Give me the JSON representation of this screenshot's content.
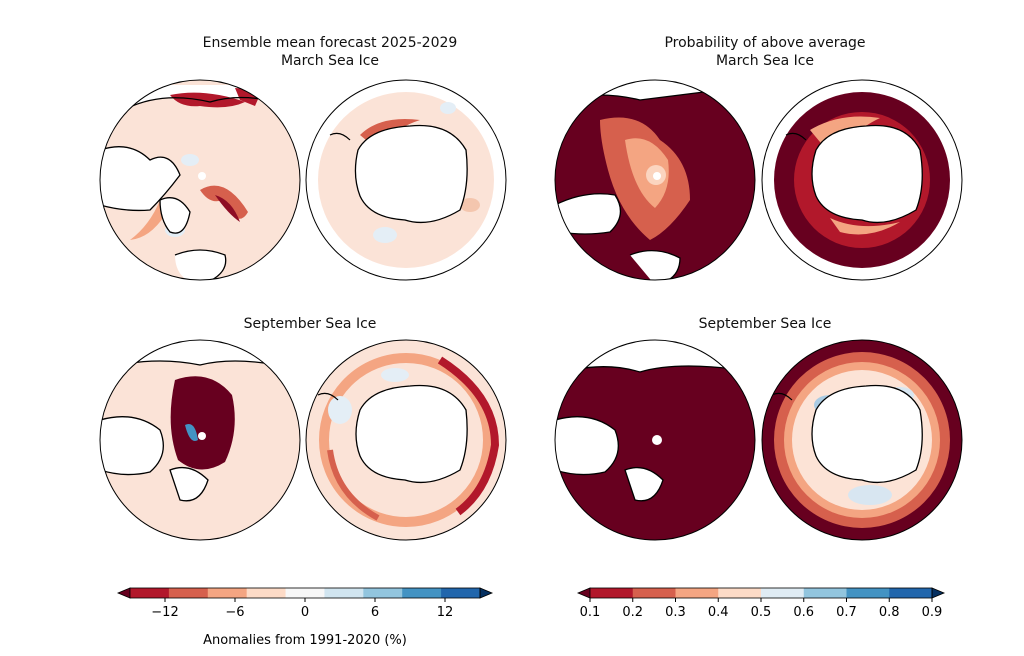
{
  "chart_data": [
    {
      "type": "heatmap",
      "title": "Ensemble mean forecast 2025-2029",
      "subtitle": "March Sea Ice",
      "panels": [
        "Arctic",
        "Antarctic"
      ]
    },
    {
      "type": "heatmap",
      "title": "Probability of above average",
      "subtitle": "March Sea Ice",
      "panels": [
        "Arctic",
        "Antarctic"
      ]
    },
    {
      "type": "heatmap",
      "title": "September Sea Ice",
      "panels": [
        "Arctic",
        "Antarctic"
      ]
    },
    {
      "type": "heatmap",
      "title": "September Sea Ice",
      "panels": [
        "Arctic",
        "Antarctic"
      ]
    }
  ],
  "colorbars": {
    "anomaly": {
      "label": "Anomalies from 1991-2020 (%)",
      "ticks": [
        "−12",
        "−6",
        "0",
        "6",
        "12"
      ],
      "range": [
        -15,
        15
      ],
      "colors": [
        "#67001f",
        "#b2182b",
        "#d6604d",
        "#f4a582",
        "#fddbc7",
        "#f7f7f7",
        "#d1e5f0",
        "#92c5de",
        "#4393c3",
        "#2166ac",
        "#053061"
      ]
    },
    "probability": {
      "ticks": [
        "0.1",
        "0.2",
        "0.3",
        "0.4",
        "0.5",
        "0.6",
        "0.7",
        "0.8",
        "0.9"
      ],
      "range": [
        0.1,
        0.9
      ],
      "colors": [
        "#67001f",
        "#b2182b",
        "#d6604d",
        "#f4a582",
        "#fddbc7",
        "#e0ecf4",
        "#92c5de",
        "#4393c3",
        "#2166ac",
        "#053061"
      ]
    }
  }
}
